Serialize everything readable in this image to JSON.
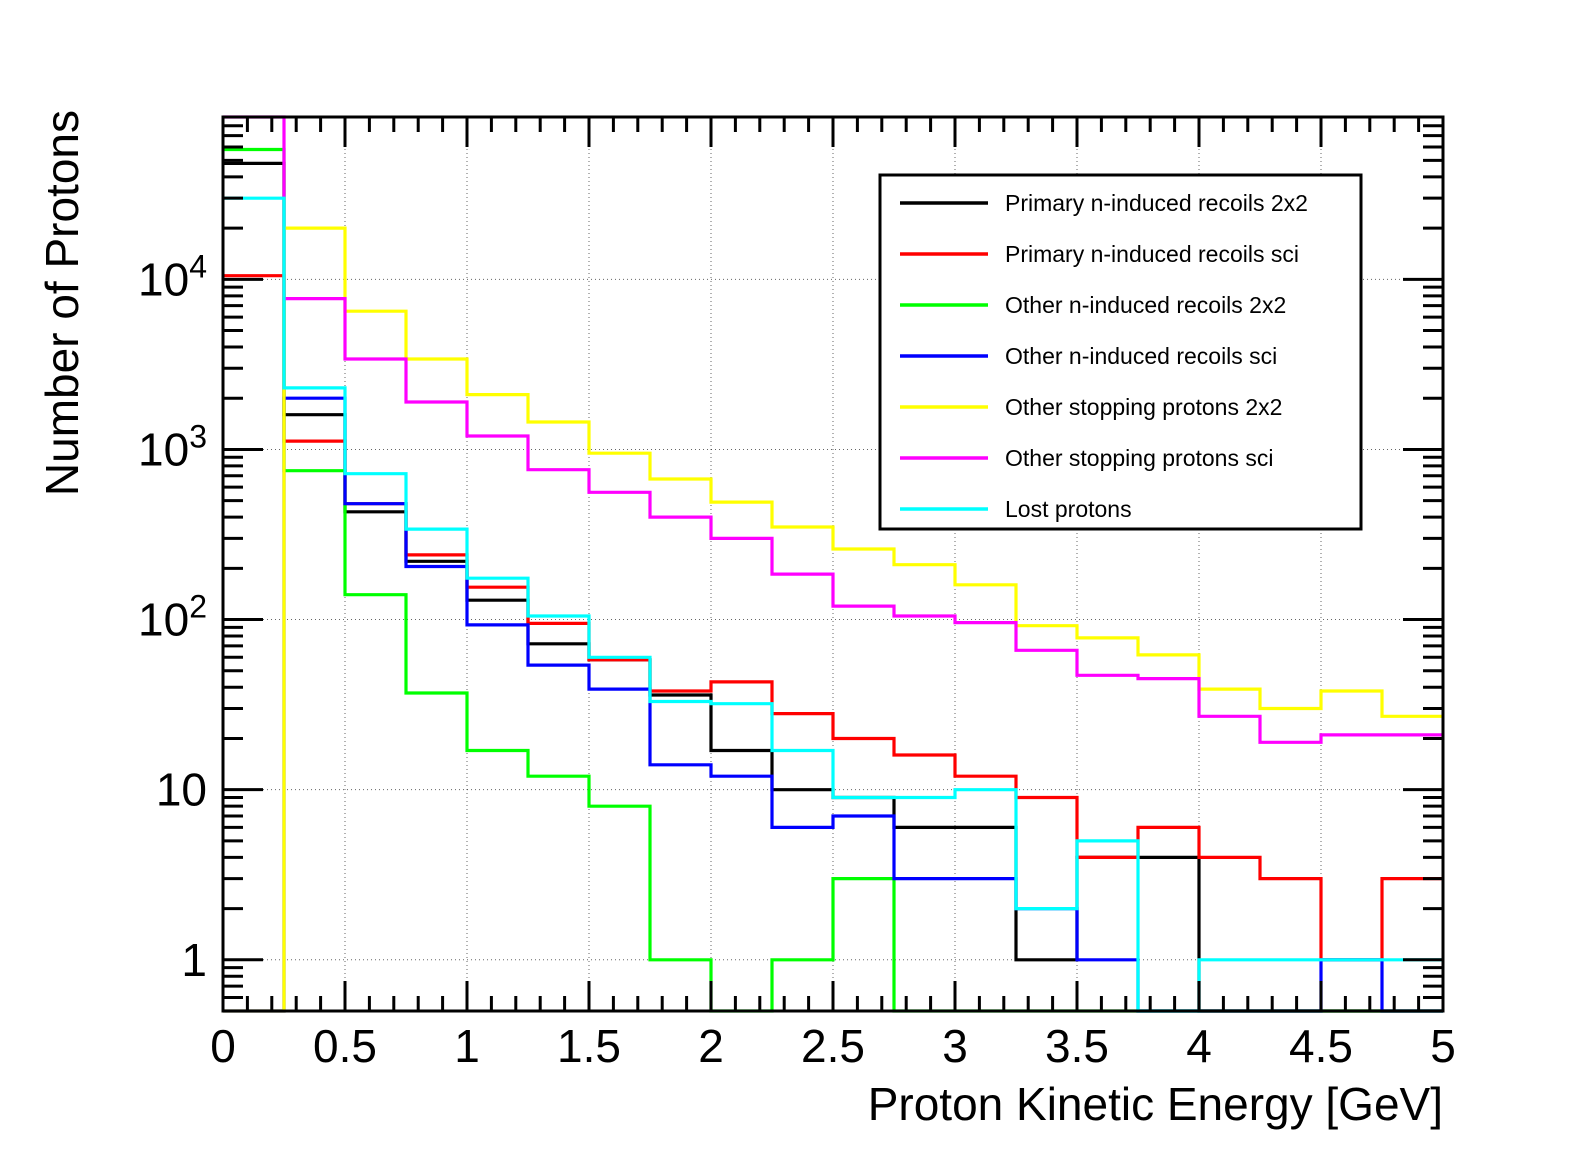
{
  "chart_data": {
    "type": "line",
    "subtype": "step-histogram",
    "xlabel": "Proton Kinetic Energy [GeV]",
    "ylabel": "Number of Protons",
    "xlim": [
      0,
      5
    ],
    "ylim": [
      0.5,
      90000
    ],
    "yscale": "log",
    "grid": true,
    "legend_position": "top-right",
    "x_ticks": [
      "0",
      "0.5",
      "1",
      "1.5",
      "2",
      "2.5",
      "3",
      "3.5",
      "4",
      "4.5",
      "5"
    ],
    "y_ticks": [
      {
        "value": 1,
        "label": "1",
        "exp": ""
      },
      {
        "value": 10,
        "label": "10",
        "exp": ""
      },
      {
        "value": 100,
        "label": "10",
        "exp": "2"
      },
      {
        "value": 1000,
        "label": "10",
        "exp": "3"
      },
      {
        "value": 10000,
        "label": "10",
        "exp": "4"
      }
    ],
    "bin_edges": [
      0,
      0.25,
      0.5,
      0.75,
      1,
      1.25,
      1.5,
      1.75,
      2,
      2.25,
      2.5,
      2.75,
      3,
      3.25,
      3.5,
      3.75,
      4,
      4.25,
      4.5,
      4.75,
      5
    ],
    "series": [
      {
        "name": "Primary n-induced recoils 2x2",
        "color": "#000000",
        "values": [
          48000,
          1600,
          430,
          220,
          130,
          72,
          58,
          36,
          17,
          10,
          9,
          6,
          6,
          1,
          4,
          4,
          0,
          0,
          0,
          0
        ]
      },
      {
        "name": "Primary n-induced recoils sci",
        "color": "#ff0000",
        "values": [
          10500,
          1120,
          480,
          240,
          155,
          95,
          58,
          38,
          43,
          28,
          20,
          16,
          12,
          9,
          4,
          6,
          4,
          3,
          1,
          3
        ]
      },
      {
        "name": "Other n-induced recoils 2x2",
        "color": "#00ff00",
        "values": [
          58000,
          750,
          140,
          37,
          17,
          12,
          8,
          1,
          0,
          1,
          3,
          0,
          0,
          0,
          0,
          0,
          0,
          0,
          0,
          0
        ]
      },
      {
        "name": "Other n-induced recoils sci",
        "color": "#0000ff",
        "values": [
          0,
          2000,
          480,
          205,
          93,
          54,
          39,
          14,
          12,
          6,
          7,
          3,
          3,
          2,
          1,
          0,
          0,
          0,
          1,
          0
        ]
      },
      {
        "name": "Other stopping protons 2x2",
        "color": "#ffff00",
        "values": [
          0,
          20000,
          6500,
          3400,
          2100,
          1450,
          950,
          670,
          490,
          350,
          260,
          210,
          160,
          92,
          78,
          62,
          39,
          30,
          38,
          27
        ]
      },
      {
        "name": "Other stopping protons sci",
        "color": "#ff00ff",
        "values": [
          90000,
          7700,
          3400,
          1900,
          1200,
          760,
          560,
          400,
          300,
          185,
          120,
          105,
          96,
          66,
          47,
          45,
          27,
          19,
          21,
          21
        ]
      },
      {
        "name": "Lost protons",
        "color": "#00ffff",
        "values": [
          30000,
          2300,
          720,
          340,
          175,
          105,
          60,
          33,
          32,
          17,
          9,
          9,
          10,
          2,
          5,
          0,
          1,
          1,
          1,
          1
        ]
      }
    ]
  }
}
